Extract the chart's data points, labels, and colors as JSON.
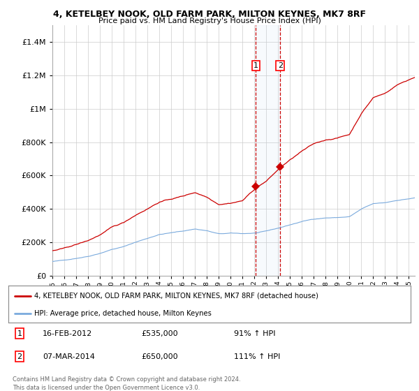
{
  "title1": "4, KETELBEY NOOK, OLD FARM PARK, MILTON KEYNES, MK7 8RF",
  "title2": "Price paid vs. HM Land Registry's House Price Index (HPI)",
  "background_color": "#ffffff",
  "plot_bg_color": "#ffffff",
  "grid_color": "#cccccc",
  "hpi_color": "#7aaadd",
  "price_color": "#cc0000",
  "sale1_date_num": 2012.12,
  "sale2_date_num": 2014.17,
  "sale1_label": "1",
  "sale2_label": "2",
  "legend_line1": "4, KETELBEY NOOK, OLD FARM PARK, MILTON KEYNES, MK7 8RF (detached house)",
  "legend_line2": "HPI: Average price, detached house, Milton Keynes",
  "annotation1_date": "16-FEB-2012",
  "annotation1_price": "£535,000",
  "annotation1_hpi": "91% ↑ HPI",
  "annotation2_date": "07-MAR-2014",
  "annotation2_price": "£650,000",
  "annotation2_hpi": "111% ↑ HPI",
  "footer": "Contains HM Land Registry data © Crown copyright and database right 2024.\nThis data is licensed under the Open Government Licence v3.0.",
  "ylim_max": 1500000,
  "xmin": 1995.0,
  "xmax": 2025.5
}
